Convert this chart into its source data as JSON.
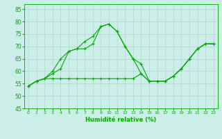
{
  "xlabel": "Humidité relative (%)",
  "ylabel": "",
  "background_color": "#cceee8",
  "grid_color": "#aacccc",
  "line_color": "#00aa00",
  "marker": "+",
  "xlim": [
    -0.5,
    23.5
  ],
  "ylim": [
    45,
    87
  ],
  "yticks": [
    45,
    50,
    55,
    60,
    65,
    70,
    75,
    80,
    85
  ],
  "xticks": [
    0,
    1,
    2,
    3,
    4,
    5,
    6,
    7,
    8,
    9,
    10,
    11,
    12,
    13,
    14,
    15,
    16,
    17,
    18,
    19,
    20,
    21,
    22,
    23
  ],
  "series": [
    [
      54,
      56,
      57,
      60,
      65,
      68,
      69,
      72,
      74,
      78,
      79,
      76,
      70,
      65,
      59,
      56,
      56,
      56,
      58,
      61,
      65,
      69,
      71,
      71
    ],
    [
      54,
      56,
      57,
      59,
      61,
      68,
      69,
      69,
      71,
      78,
      79,
      76,
      70,
      65,
      63,
      56,
      56,
      56,
      58,
      61,
      65,
      69,
      71,
      71
    ],
    [
      54,
      56,
      57,
      57,
      57,
      57,
      57,
      57,
      57,
      57,
      57,
      57,
      57,
      57,
      59,
      56,
      56,
      56,
      58,
      61,
      65,
      69,
      71,
      71
    ]
  ]
}
